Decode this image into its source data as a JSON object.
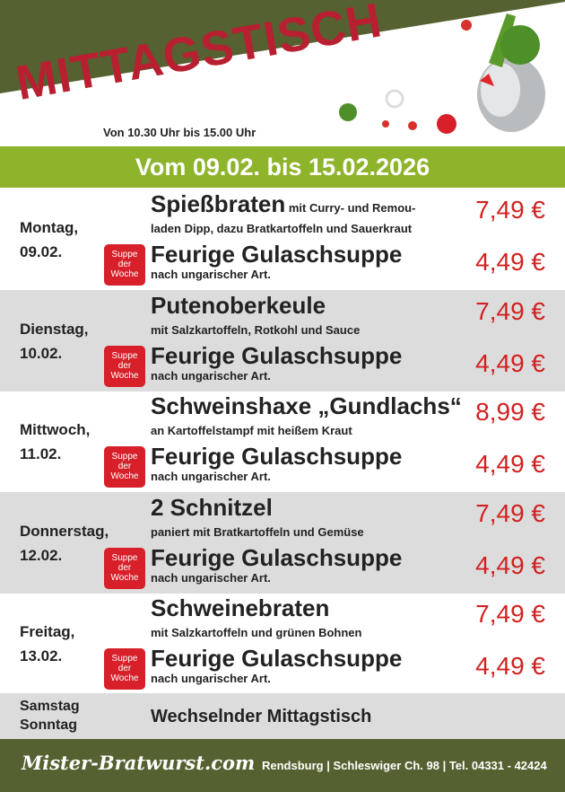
{
  "header": {
    "title": "MITTAGSTISCH",
    "hours": "Von 10.30 Uhr bis 15.00 Uhr",
    "date_range": "Vom 09.02. bis 15.02.2026"
  },
  "badge": {
    "line1": "Suppe",
    "line2": "der",
    "line3": "Woche"
  },
  "days": [
    {
      "day": "Montag,",
      "date": "09.02.",
      "dish": "Spießbraten",
      "dish_inline": " mit Curry- und Remou-",
      "desc": "laden Dipp, dazu Bratkartoffeln und Sauerkraut",
      "price": "7,49 €",
      "soup": "Feurige Gulaschsuppe",
      "soup_desc": "nach ungarischer Art.",
      "soup_price": "4,49 €"
    },
    {
      "day": "Dienstag,",
      "date": "10.02.",
      "dish": "Putenoberkeule",
      "dish_inline": "",
      "desc": "mit Salzkartoffeln, Rotkohl und Sauce",
      "price": "7,49 €",
      "soup": "Feurige Gulaschsuppe",
      "soup_desc": "nach ungarischer Art.",
      "soup_price": "4,49 €"
    },
    {
      "day": "Mittwoch,",
      "date": "11.02.",
      "dish": "Schweinshaxe „Gundlachs“",
      "dish_inline": "",
      "desc": "an Kartoffelstampf mit heißem Kraut",
      "price": "8,99 €",
      "soup": "Feurige Gulaschsuppe",
      "soup_desc": "nach ungarischer Art.",
      "soup_price": "4,49 €"
    },
    {
      "day": "Donnerstag,",
      "date": "12.02.",
      "dish": "2 Schnitzel",
      "dish_inline": "",
      "desc": "paniert mit Bratkartoffeln und Gemüse",
      "price": "7,49 €",
      "soup": "Feurige Gulaschsuppe",
      "soup_desc": "nach ungarischer Art.",
      "soup_price": "4,49 €"
    },
    {
      "day": "Freitag,",
      "date": "13.02.",
      "dish": "Schweinebraten",
      "dish_inline": "",
      "desc": "mit Salzkartoffeln und grünen Bohnen",
      "price": "7,49 €",
      "soup": "Feurige Gulaschsuppe",
      "soup_desc": "nach ungarischer Art.",
      "soup_price": "4,49 €"
    }
  ],
  "weekend": {
    "day1": "Samstag",
    "day2": "Sonntag",
    "text": "Wechselnder Mittagstisch"
  },
  "footer": {
    "brand": "Mister-Bratwurst.com",
    "address": "Rendsburg | Schleswiger Ch. 98 | Tel. 04331 - 42424"
  },
  "colors": {
    "olive": "#556130",
    "green": "#8db42a",
    "title_red": "#b81f30",
    "price_red": "#d42020",
    "row_gray": "#dcdcdc"
  }
}
